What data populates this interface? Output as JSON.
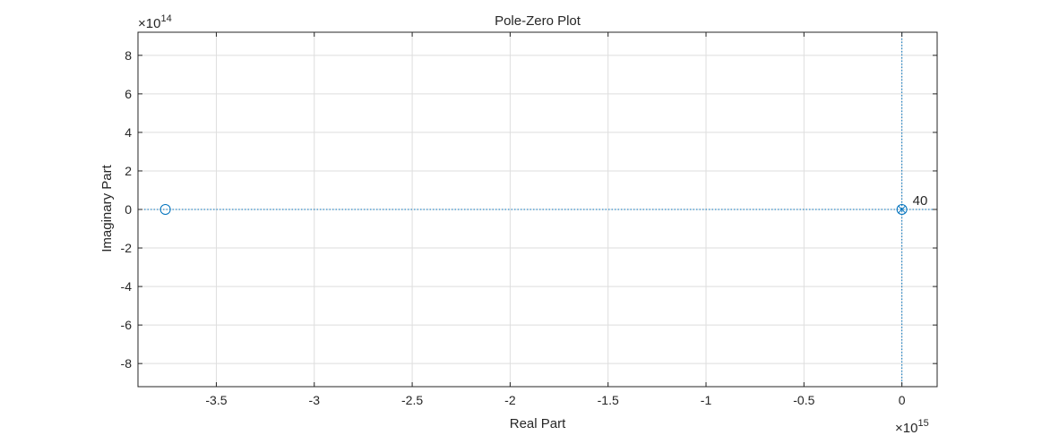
{
  "chart_data": {
    "type": "scatter",
    "title": "Pole-Zero Plot",
    "xlabel": "Real Part",
    "ylabel": "Imaginary Part",
    "x_exponent_label": "×10",
    "x_exponent": "15",
    "y_exponent_label": "×10",
    "y_exponent": "14",
    "xlim": [
      -3.9,
      0.18
    ],
    "ylim": [
      -9.2,
      9.2
    ],
    "xticks": [
      -3.5,
      -3,
      -2.5,
      -2,
      -1.5,
      -1,
      -0.5,
      0
    ],
    "xtick_labels": [
      "-3.5",
      "-3",
      "-2.5",
      "-2",
      "-1.5",
      "-1",
      "-0.5",
      "0"
    ],
    "yticks": [
      -8,
      -6,
      -4,
      -2,
      0,
      2,
      4,
      6,
      8
    ],
    "ytick_labels": [
      "-8",
      "-6",
      "-4",
      "-2",
      "0",
      "2",
      "4",
      "6",
      "8"
    ],
    "grid": true,
    "colors": {
      "marker": "#0072BD",
      "axis": "#262626",
      "grid": "#dedede"
    },
    "zeros": [
      {
        "x": -3.76,
        "y": 0
      },
      {
        "x": 0,
        "y": 0
      }
    ],
    "poles": [
      {
        "x": 0,
        "y": 0
      }
    ],
    "annotations": [
      {
        "text": "40",
        "x": 0,
        "y": 0
      }
    ]
  }
}
